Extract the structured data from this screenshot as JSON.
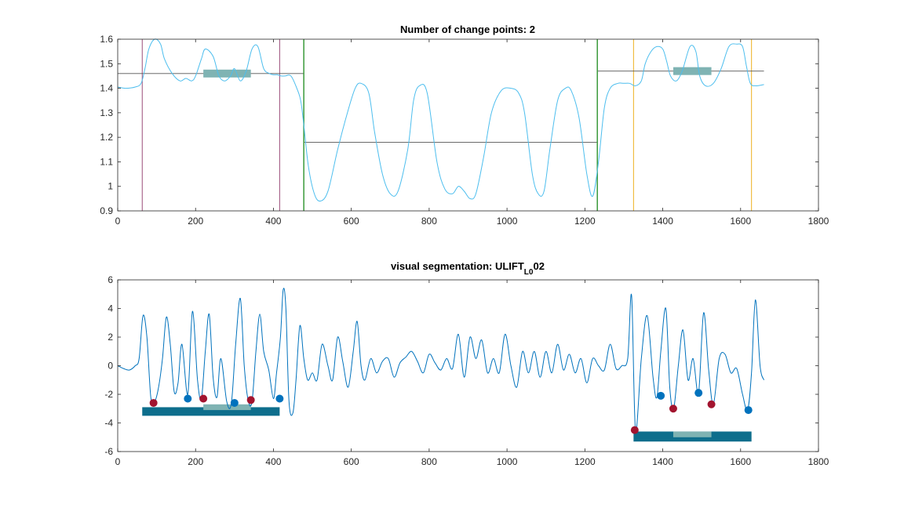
{
  "chart_data": [
    {
      "type": "line",
      "title": "Number of change points: 2",
      "xlim": [
        0,
        1800
      ],
      "ylim": [
        0.9,
        1.6
      ],
      "xticks": [
        0,
        200,
        400,
        600,
        800,
        1000,
        1200,
        1400,
        1600,
        1800
      ],
      "yticks": [
        0.9,
        1,
        1.1,
        1.2,
        1.3,
        1.4,
        1.5,
        1.6
      ],
      "xtick_labels": [
        "0",
        "200",
        "400",
        "600",
        "800",
        "1000",
        "1200",
        "1400",
        "1600",
        "1800"
      ],
      "ytick_labels": [
        "0.9",
        "1",
        "1.1",
        "1.2",
        "1.3",
        "1.4",
        "1.5",
        "1.6"
      ],
      "grid": false,
      "colors": {
        "signal": "#4DBEEE",
        "change": "#3A9A3A",
        "segment_mean": "#555555",
        "region_left": "#9B4D7A",
        "region_right": "#EDB120",
        "bar": "#7FB3B3"
      },
      "signal": {
        "x": [
          0,
          20,
          45,
          60,
          70,
          80,
          95,
          110,
          120,
          140,
          160,
          175,
          190,
          200,
          215,
          225,
          245,
          260,
          275,
          290,
          300,
          315,
          330,
          345,
          360,
          375,
          390,
          400,
          410,
          420,
          430,
          445,
          460,
          470,
          478,
          490,
          505,
          520,
          540,
          565,
          590,
          610,
          625,
          645,
          660,
          680,
          700,
          720,
          745,
          760,
          775,
          795,
          820,
          840,
          860,
          875,
          890,
          905,
          920,
          940,
          960,
          985,
          1010,
          1030,
          1045,
          1065,
          1080,
          1095,
          1110,
          1130,
          1150,
          1165,
          1185,
          1205,
          1220,
          1235,
          1250,
          1265,
          1285,
          1300,
          1315,
          1330,
          1345,
          1355,
          1370,
          1385,
          1400,
          1410,
          1420,
          1435,
          1450,
          1470,
          1485,
          1495,
          1510,
          1530,
          1550,
          1570,
          1590,
          1605,
          1615,
          1625,
          1640,
          1660
        ],
        "y": [
          1.405,
          1.4,
          1.405,
          1.42,
          1.48,
          1.56,
          1.6,
          1.58,
          1.52,
          1.46,
          1.43,
          1.44,
          1.43,
          1.45,
          1.52,
          1.56,
          1.53,
          1.45,
          1.43,
          1.45,
          1.48,
          1.43,
          1.47,
          1.56,
          1.57,
          1.48,
          1.46,
          1.455,
          1.455,
          1.45,
          1.45,
          1.45,
          1.4,
          1.35,
          1.25,
          1.08,
          0.97,
          0.94,
          0.98,
          1.15,
          1.3,
          1.4,
          1.42,
          1.38,
          1.22,
          1.05,
          0.97,
          0.98,
          1.15,
          1.35,
          1.41,
          1.38,
          1.1,
          0.99,
          0.97,
          1.0,
          0.98,
          0.95,
          0.97,
          1.12,
          1.3,
          1.39,
          1.4,
          1.38,
          1.3,
          1.05,
          0.97,
          0.98,
          1.15,
          1.35,
          1.4,
          1.39,
          1.28,
          1.05,
          0.96,
          1.1,
          1.32,
          1.4,
          1.42,
          1.42,
          1.42,
          1.41,
          1.43,
          1.5,
          1.55,
          1.57,
          1.56,
          1.51,
          1.45,
          1.43,
          1.47,
          1.57,
          1.55,
          1.45,
          1.41,
          1.42,
          1.48,
          1.57,
          1.58,
          1.57,
          1.49,
          1.42,
          1.41,
          1.415
        ]
      },
      "change_points": [
        478,
        1232
      ],
      "segment_means": [
        {
          "x": [
            0,
            478
          ],
          "y": 1.46
        },
        {
          "x": [
            478,
            1232
          ],
          "y": 1.18
        },
        {
          "x": [
            1232,
            1660
          ],
          "y": 1.47
        }
      ],
      "region_lines_left": [
        63,
        416
      ],
      "region_lines_right": [
        1325,
        1628
      ],
      "bars": [
        {
          "x": [
            220,
            342
          ],
          "y": 1.46
        },
        {
          "x": [
            1427,
            1525
          ],
          "y": 1.47
        }
      ]
    },
    {
      "type": "line",
      "title_parts": {
        "main": "visual segmentation: ULIFT",
        "sub": "L0",
        "suffix": "02"
      },
      "xlim": [
        0,
        1800
      ],
      "ylim": [
        -6,
        6
      ],
      "xticks": [
        0,
        200,
        400,
        600,
        800,
        1000,
        1200,
        1400,
        1600,
        1800
      ],
      "yticks": [
        -6,
        -4,
        -2,
        0,
        2,
        4,
        6
      ],
      "xtick_labels": [
        "0",
        "200",
        "400",
        "600",
        "800",
        "1000",
        "1200",
        "1400",
        "1600",
        "1800"
      ],
      "ytick_labels": [
        "-6",
        "-4",
        "-2",
        "0",
        "2",
        "4",
        "6"
      ],
      "grid": false,
      "colors": {
        "signal": "#0072BD",
        "minima": "#A2142F",
        "maxima": "#0072BD",
        "band": "#0E6E8C",
        "bar": "#7FB3B3"
      },
      "signal": {
        "x": [
          0,
          15,
          30,
          45,
          55,
          65,
          75,
          85,
          95,
          105,
          115,
          125,
          135,
          145,
          155,
          165,
          180,
          192,
          205,
          215,
          225,
          235,
          245,
          255,
          265,
          280,
          292,
          303,
          315,
          325,
          335,
          345,
          355,
          365,
          375,
          388,
          400,
          408,
          418,
          425,
          432,
          440,
          450,
          458,
          468,
          478,
          488,
          500,
          512,
          525,
          540,
          552,
          565,
          578,
          592,
          605,
          615,
          625,
          635,
          650,
          665,
          680,
          695,
          710,
          725,
          740,
          755,
          770,
          785,
          800,
          815,
          830,
          845,
          860,
          875,
          890,
          905,
          920,
          935,
          950,
          965,
          980,
          995,
          1010,
          1025,
          1040,
          1055,
          1070,
          1085,
          1100,
          1115,
          1130,
          1145,
          1160,
          1175,
          1190,
          1205,
          1220,
          1235,
          1250,
          1265,
          1280,
          1295,
          1310,
          1320,
          1330,
          1345,
          1360,
          1375,
          1385,
          1395,
          1408,
          1418,
          1428,
          1440,
          1452,
          1465,
          1478,
          1492,
          1505,
          1518,
          1530,
          1545,
          1560,
          1575,
          1590,
          1605,
          1618,
          1628,
          1638,
          1650,
          1660
        ],
        "y": [
          0.0,
          -0.2,
          -0.3,
          0.0,
          0.5,
          3.5,
          2.0,
          -2.2,
          -2.5,
          -1.5,
          0.5,
          3.4,
          1.5,
          -1.8,
          -1.2,
          1.5,
          -2.0,
          3.8,
          -1.0,
          -2.3,
          1.0,
          3.6,
          -0.8,
          -2.2,
          0.5,
          -2.5,
          -2.6,
          1.5,
          4.7,
          0.0,
          -2.4,
          -2.5,
          1.0,
          3.6,
          1.0,
          -0.3,
          -2.3,
          -0.5,
          2.0,
          5.3,
          4.0,
          -2.5,
          -3.3,
          -1.0,
          2.8,
          0.5,
          -1.0,
          -0.5,
          -1.0,
          1.5,
          0.0,
          -1.0,
          2.0,
          0.3,
          -1.5,
          1.0,
          3.1,
          0.0,
          -1.0,
          0.5,
          -0.5,
          0.3,
          0.5,
          -0.8,
          0.2,
          0.6,
          1.0,
          0.3,
          -0.5,
          0.8,
          0.2,
          -0.3,
          0.5,
          -0.2,
          2.2,
          -0.8,
          2.0,
          0.5,
          1.8,
          -0.5,
          0.5,
          -0.5,
          2.2,
          0.0,
          -1.5,
          1.0,
          -0.5,
          1.0,
          -0.8,
          1.0,
          -0.5,
          1.5,
          -0.3,
          0.8,
          -0.5,
          0.5,
          -1.2,
          0.5,
          0.0,
          -0.3,
          1.5,
          -0.2,
          0.0,
          0.5,
          4.9,
          -4.5,
          0.5,
          3.5,
          -0.8,
          -2.2,
          1.0,
          4.0,
          -1.5,
          -3.0,
          0.0,
          2.5,
          -1.0,
          0.5,
          -1.9,
          3.7,
          -0.3,
          -2.7,
          0.5,
          0.8,
          -0.5,
          -0.2,
          -2.0,
          -3.1,
          -0.5,
          4.6,
          0.0,
          -1.0
        ]
      },
      "minima": [
        [
          92,
          -2.6
        ],
        [
          220,
          -2.3
        ],
        [
          342,
          -2.4
        ],
        [
          1328,
          -4.5
        ],
        [
          1427,
          -3.0
        ],
        [
          1525,
          -2.7
        ]
      ],
      "maxima": [
        [
          180,
          -2.3
        ],
        [
          300,
          -2.6
        ],
        [
          416,
          -2.3
        ],
        [
          1395,
          -2.1
        ],
        [
          1492,
          -1.9
        ],
        [
          1620,
          -3.1
        ]
      ],
      "bands": [
        {
          "x": [
            63,
            416
          ],
          "y": [
            -3.5,
            -2.9
          ]
        },
        {
          "x": [
            1325,
            1628
          ],
          "y": [
            -5.3,
            -4.6
          ]
        }
      ],
      "bars": [
        {
          "x": [
            220,
            342
          ],
          "y": [
            -3.1,
            -2.7
          ]
        },
        {
          "x": [
            1427,
            1525
          ],
          "y": [
            -5.0,
            -4.6
          ]
        }
      ]
    }
  ]
}
